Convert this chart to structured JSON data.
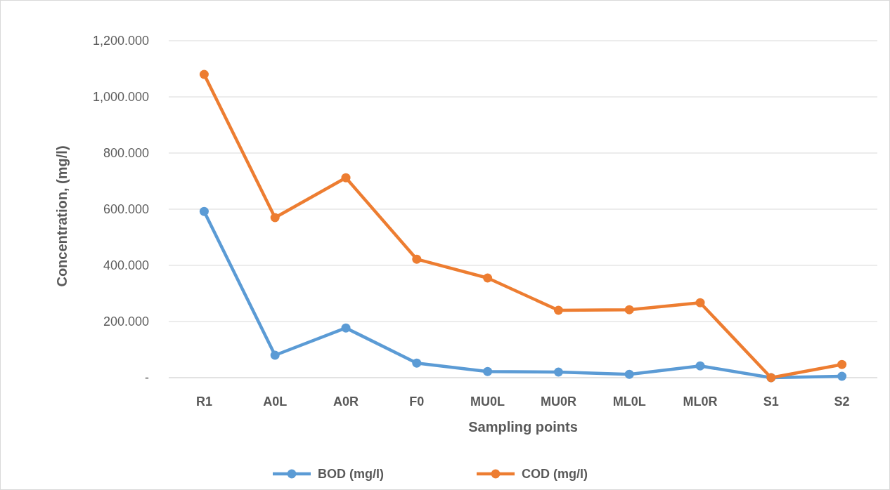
{
  "chart_data": {
    "type": "line",
    "xlabel": "Sampling points",
    "ylabel": "Concentration, (mg/l)",
    "categories": [
      "R1",
      "A0L",
      "A0R",
      "F0",
      "MU0L",
      "MU0R",
      "ML0L",
      "ML0R",
      "S1",
      "S2"
    ],
    "series": [
      {
        "name": "BOD (mg/l)",
        "color": "#5b9bd5",
        "values": [
          592,
          80,
          177,
          52,
          22,
          20,
          12,
          42,
          0,
          5
        ]
      },
      {
        "name": "COD (mg/l)",
        "color": "#ed7d31",
        "values": [
          1080,
          570,
          712,
          422,
          355,
          240,
          242,
          267,
          0,
          47
        ]
      }
    ],
    "ylim": [
      0,
      1200
    ],
    "yticks": [
      {
        "value": 0,
        "label": "-"
      },
      {
        "value": 200,
        "label": "200.000"
      },
      {
        "value": 400,
        "label": "400.000"
      },
      {
        "value": 600,
        "label": "600.000"
      },
      {
        "value": 800,
        "label": "800.000"
      },
      {
        "value": 1000,
        "label": "1,000.000"
      },
      {
        "value": 1200,
        "label": "1,200.000"
      }
    ],
    "grid": "y",
    "legend": "bottom",
    "marker": "circle",
    "line_style": "solid"
  }
}
